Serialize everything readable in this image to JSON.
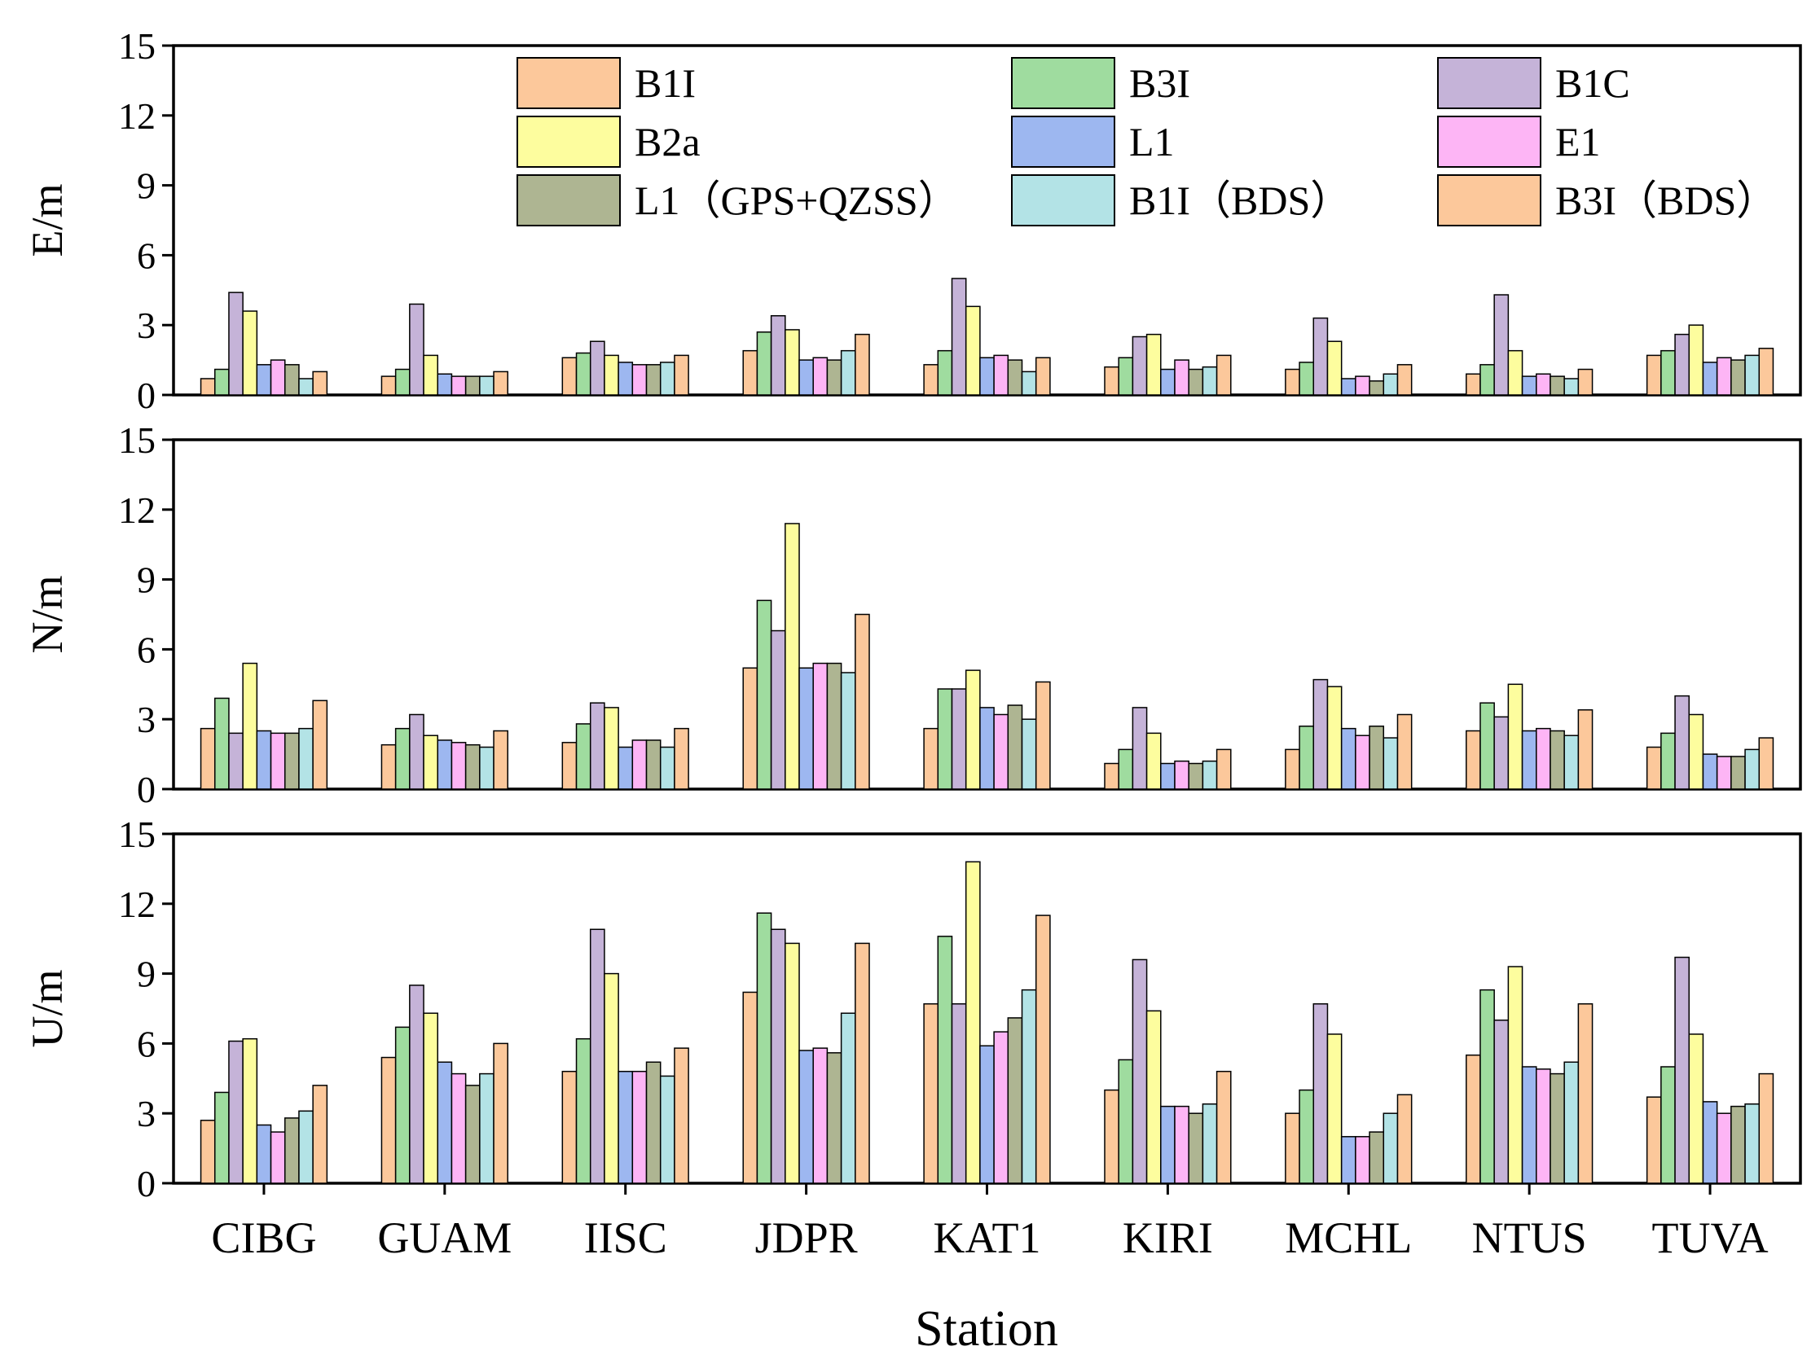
{
  "chart_data": {
    "type": "bar",
    "xlabel": "Station",
    "categories": [
      "CIBG",
      "GUAM",
      "IISC",
      "JDPR",
      "KAT1",
      "KIRI",
      "MCHL",
      "NTUS",
      "TUVA"
    ],
    "series_styles": [
      {
        "name": "B1I",
        "color": "#FCC89B"
      },
      {
        "name": "B3I",
        "color": "#9FDC9F"
      },
      {
        "name": "B1C",
        "color": "#C5B3D8"
      },
      {
        "name": "B2a",
        "color": "#FDFD9E"
      },
      {
        "name": "L1",
        "color": "#9DB7F0"
      },
      {
        "name": "E1",
        "color": "#FDB5F5"
      },
      {
        "name": "L1（GPS+QZSS）",
        "color": "#AEB592"
      },
      {
        "name": "B1I（BDS）",
        "color": "#B3E3E6"
      },
      {
        "name": "B3I（BDS）",
        "color": "#FCC89B"
      }
    ],
    "panels": [
      {
        "ylabel": "E/m",
        "ylim": [
          0,
          15
        ],
        "yticks": [
          0,
          3,
          6,
          9,
          12,
          15
        ],
        "series": [
          {
            "name": "B1I",
            "values": [
              0.7,
              0.8,
              1.6,
              1.9,
              1.3,
              1.2,
              1.1,
              0.9,
              1.7
            ]
          },
          {
            "name": "B3I",
            "values": [
              1.1,
              1.1,
              1.8,
              2.7,
              1.9,
              1.6,
              1.4,
              1.3,
              1.9
            ]
          },
          {
            "name": "B1C",
            "values": [
              4.4,
              3.9,
              2.3,
              3.4,
              5.0,
              2.5,
              3.3,
              4.3,
              2.6
            ]
          },
          {
            "name": "B2a",
            "values": [
              3.6,
              1.7,
              1.7,
              2.8,
              3.8,
              2.6,
              2.3,
              1.9,
              3.0
            ]
          },
          {
            "name": "L1",
            "values": [
              1.3,
              0.9,
              1.4,
              1.5,
              1.6,
              1.1,
              0.7,
              0.8,
              1.4
            ]
          },
          {
            "name": "E1",
            "values": [
              1.5,
              0.8,
              1.3,
              1.6,
              1.7,
              1.5,
              0.8,
              0.9,
              1.6
            ]
          },
          {
            "name": "L1（GPS+QZSS）",
            "values": [
              1.3,
              0.8,
              1.3,
              1.5,
              1.5,
              1.1,
              0.6,
              0.8,
              1.5
            ]
          },
          {
            "name": "B1I（BDS）",
            "values": [
              0.7,
              0.8,
              1.4,
              1.9,
              1.0,
              1.2,
              0.9,
              0.7,
              1.7
            ]
          },
          {
            "name": "B3I（BDS）",
            "values": [
              1.0,
              1.0,
              1.7,
              2.6,
              1.6,
              1.7,
              1.3,
              1.1,
              2.0
            ]
          }
        ]
      },
      {
        "ylabel": "N/m",
        "ylim": [
          0,
          15
        ],
        "yticks": [
          0,
          3,
          6,
          9,
          12,
          15
        ],
        "series": [
          {
            "name": "B1I",
            "values": [
              2.6,
              1.9,
              2.0,
              5.2,
              2.6,
              1.1,
              1.7,
              2.5,
              1.8
            ]
          },
          {
            "name": "B3I",
            "values": [
              3.9,
              2.6,
              2.8,
              8.1,
              4.3,
              1.7,
              2.7,
              3.7,
              2.4
            ]
          },
          {
            "name": "B1C",
            "values": [
              2.4,
              3.2,
              3.7,
              6.8,
              4.3,
              3.5,
              4.7,
              3.1,
              4.0
            ]
          },
          {
            "name": "B2a",
            "values": [
              5.4,
              2.3,
              3.5,
              11.4,
              5.1,
              2.4,
              4.4,
              4.5,
              3.2
            ]
          },
          {
            "name": "L1",
            "values": [
              2.5,
              2.1,
              1.8,
              5.2,
              3.5,
              1.1,
              2.6,
              2.5,
              1.5
            ]
          },
          {
            "name": "E1",
            "values": [
              2.4,
              2.0,
              2.1,
              5.4,
              3.2,
              1.2,
              2.3,
              2.6,
              1.4
            ]
          },
          {
            "name": "L1（GPS+QZSS）",
            "values": [
              2.4,
              1.9,
              2.1,
              5.4,
              3.6,
              1.1,
              2.7,
              2.5,
              1.4
            ]
          },
          {
            "name": "B1I（BDS）",
            "values": [
              2.6,
              1.8,
              1.8,
              5.0,
              3.0,
              1.2,
              2.2,
              2.3,
              1.7
            ]
          },
          {
            "name": "B3I（BDS）",
            "values": [
              3.8,
              2.5,
              2.6,
              7.5,
              4.6,
              1.7,
              3.2,
              3.4,
              2.2
            ]
          }
        ]
      },
      {
        "ylabel": "U/m",
        "ylim": [
          0,
          15
        ],
        "yticks": [
          0,
          3,
          6,
          9,
          12,
          15
        ],
        "series": [
          {
            "name": "B1I",
            "values": [
              2.7,
              5.4,
              4.8,
              8.2,
              7.7,
              4.0,
              3.0,
              5.5,
              3.7
            ]
          },
          {
            "name": "B3I",
            "values": [
              3.9,
              6.7,
              6.2,
              11.6,
              10.6,
              5.3,
              4.0,
              8.3,
              5.0
            ]
          },
          {
            "name": "B1C",
            "values": [
              6.1,
              8.5,
              10.9,
              10.9,
              7.7,
              9.6,
              7.7,
              7.0,
              9.7
            ]
          },
          {
            "name": "B2a",
            "values": [
              6.2,
              7.3,
              9.0,
              10.3,
              13.8,
              7.4,
              6.4,
              9.3,
              6.4
            ]
          },
          {
            "name": "L1",
            "values": [
              2.5,
              5.2,
              4.8,
              5.7,
              5.9,
              3.3,
              2.0,
              5.0,
              3.5
            ]
          },
          {
            "name": "E1",
            "values": [
              2.2,
              4.7,
              4.8,
              5.8,
              6.5,
              3.3,
              2.0,
              4.9,
              3.0
            ]
          },
          {
            "name": "L1（GPS+QZSS）",
            "values": [
              2.8,
              4.2,
              5.2,
              5.6,
              7.1,
              3.0,
              2.2,
              4.7,
              3.3
            ]
          },
          {
            "name": "B1I（BDS）",
            "values": [
              3.1,
              4.7,
              4.6,
              7.3,
              8.3,
              3.4,
              3.0,
              5.2,
              3.4
            ]
          },
          {
            "name": "B3I（BDS）",
            "values": [
              4.2,
              6.0,
              5.8,
              10.3,
              11.5,
              4.8,
              3.8,
              7.7,
              4.7
            ]
          }
        ]
      }
    ]
  }
}
